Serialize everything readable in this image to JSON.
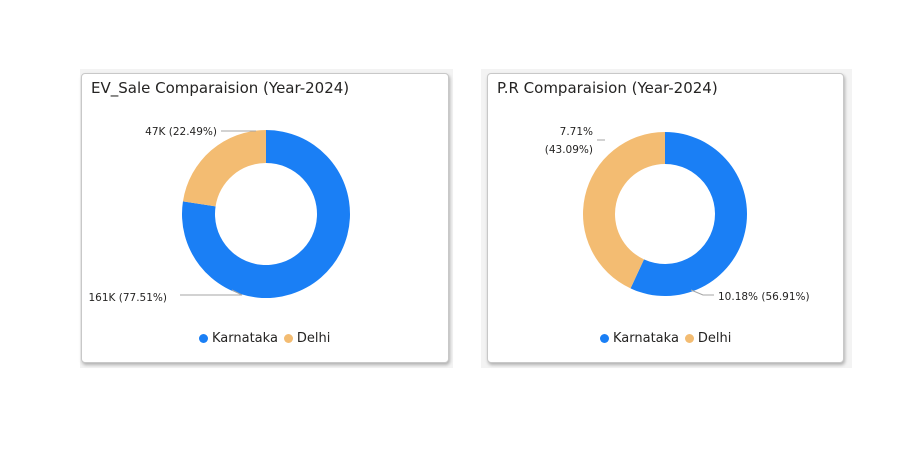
{
  "colors": {
    "karnataka": "#1a7ff5",
    "delhi": "#f3bc72",
    "leader": "#a5a5a5"
  },
  "chart_data": [
    {
      "type": "pie",
      "donut": true,
      "title": "EV_Sale Comparaision (Year-2024)",
      "categories": [
        "Karnataka",
        "Delhi"
      ],
      "values": [
        161000,
        47000
      ],
      "percentages": [
        77.51,
        22.49
      ],
      "data_labels": [
        "161K (77.51%)",
        "47K (22.49%)"
      ],
      "legend": [
        "Karnataka",
        "Delhi"
      ],
      "legend_position": "bottom"
    },
    {
      "type": "pie",
      "donut": true,
      "title": "P.R Comparaision (Year-2024)",
      "categories": [
        "Karnataka",
        "Delhi"
      ],
      "values": [
        10.18,
        7.71
      ],
      "percentages": [
        56.91,
        43.09
      ],
      "data_labels": [
        "10.18% (56.91%)",
        "7.71% (43.09%)"
      ],
      "legend": [
        "Karnataka",
        "Delhi"
      ],
      "legend_position": "bottom"
    }
  ]
}
